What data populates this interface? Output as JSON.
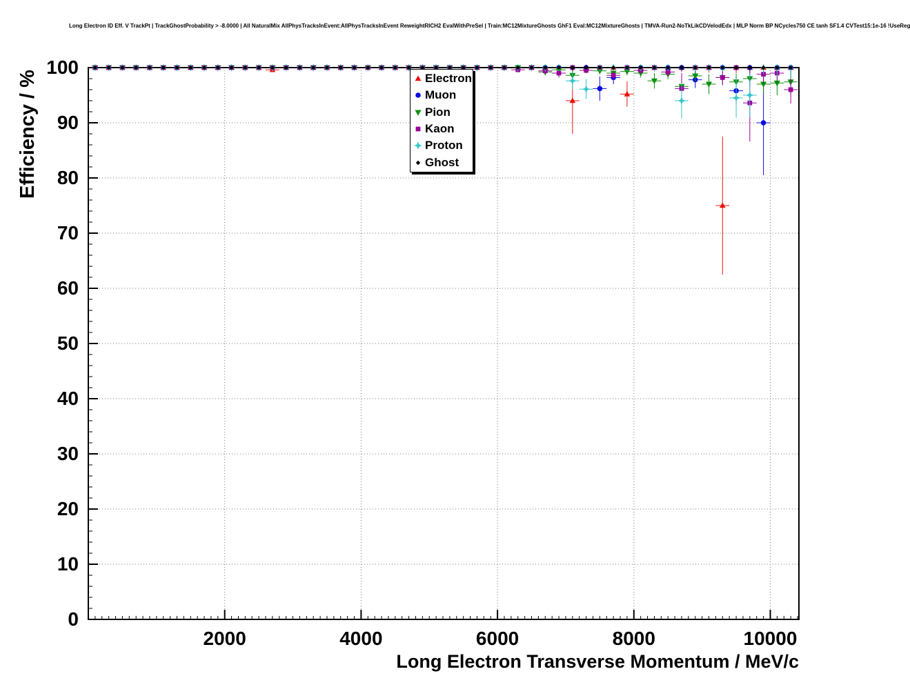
{
  "title": "Long Electron ID Eff. V TrackPt | TrackGhostProbability > -8.0000 | All NaturalMix AllPhysTracksInEvent:AllPhysTracksInEvent ReweightRICH2 EvalWithPreSel | Train:MC12MixtureGhosts GhF1 Eval:MC12MixtureGhosts | TMVA-Run2-NoTkLikCDVelodEdx | MLP Norm BP NCycles750 CE tanh SF1.4 CVTest15:1e-16 !UseReg",
  "chart_data": {
    "type": "scatter",
    "title": "Long Electron ID Eff. V TrackPt",
    "xlabel": "Long Electron Transverse Momentum / MeV/c",
    "ylabel": "Efficiency / %",
    "xlim": [
      0,
      10420
    ],
    "ylim": [
      0,
      100
    ],
    "x_ticks": [
      2000,
      4000,
      6000,
      8000,
      10000
    ],
    "y_ticks": [
      0,
      10,
      20,
      30,
      40,
      50,
      60,
      70,
      80,
      90,
      100
    ],
    "x_minor_step": 100,
    "y_minor_step": 2,
    "grid": "dotted",
    "legend_position": "top-center",
    "bin_half_width": 100,
    "x": [
      100,
      300,
      500,
      700,
      900,
      1100,
      1300,
      1500,
      1700,
      1900,
      2100,
      2300,
      2500,
      2700,
      2900,
      3100,
      3300,
      3500,
      3700,
      3900,
      4100,
      4300,
      4500,
      4700,
      4900,
      5100,
      5300,
      5500,
      5700,
      5900,
      6100,
      6300,
      6500,
      6700,
      6900,
      7100,
      7300,
      7500,
      7700,
      7900,
      8100,
      8300,
      8500,
      8700,
      8900,
      9100,
      9300,
      9500,
      9700,
      9900,
      10100,
      10300
    ],
    "series": [
      {
        "name": "Electron",
        "color": "#e8130c",
        "marker": "triangle-up",
        "marker_size": 4.6,
        "y": [
          100,
          100,
          100,
          100,
          100,
          100,
          100,
          100,
          100,
          100,
          100,
          100,
          100,
          99.6,
          100,
          100,
          100,
          100,
          100,
          100,
          100,
          100,
          100,
          100,
          100,
          100,
          100,
          100,
          100,
          100,
          100,
          100,
          100,
          100,
          100,
          94,
          100,
          100,
          100,
          95.2,
          100,
          100,
          100,
          100,
          100,
          100,
          75,
          100,
          100,
          100,
          100,
          100
        ],
        "ey": [
          0.05,
          0.05,
          0.05,
          0.05,
          0.05,
          0.05,
          0.05,
          0.05,
          0.05,
          0.05,
          0.05,
          0.05,
          0.05,
          0.35,
          0.05,
          0.05,
          0.05,
          0.05,
          0.05,
          0.05,
          0.05,
          0.05,
          0.05,
          0.05,
          0.05,
          0.05,
          0.05,
          0.05,
          0.05,
          0.05,
          0.05,
          0.05,
          0.05,
          0.3,
          0.3,
          6,
          0.5,
          0.5,
          0.5,
          2.3,
          0.7,
          0.7,
          0.8,
          0.8,
          0.9,
          0.9,
          12.5,
          1,
          1,
          1.2,
          1.4,
          1.8
        ]
      },
      {
        "name": "Muon",
        "color": "#0a0ae0",
        "marker": "circle",
        "marker_size": 4.2,
        "y": [
          100,
          100,
          100,
          100,
          100,
          100,
          100,
          100,
          100,
          100,
          100,
          100,
          100,
          100,
          100,
          100,
          100,
          100,
          100,
          100,
          100,
          100,
          100,
          100,
          100,
          100,
          100,
          100,
          100,
          100,
          100,
          100,
          100,
          100,
          100,
          100,
          100,
          96.2,
          98.2,
          100,
          100,
          100,
          100,
          100,
          97.8,
          100,
          100,
          95.8,
          100,
          90,
          100,
          100
        ],
        "ey": [
          0.05,
          0.05,
          0.05,
          0.05,
          0.05,
          0.05,
          0.05,
          0.05,
          0.05,
          0.05,
          0.05,
          0.05,
          0.05,
          0.05,
          0.05,
          0.05,
          0.05,
          0.05,
          0.05,
          0.05,
          0.05,
          0.05,
          0.05,
          0.05,
          0.05,
          0.05,
          0.05,
          0.05,
          0.05,
          0.05,
          0.05,
          0.05,
          0.05,
          0.3,
          0.3,
          0.3,
          0.3,
          2.2,
          1.2,
          0.4,
          0.4,
          0.4,
          0.4,
          0.4,
          1.5,
          0.5,
          0.5,
          2.6,
          0.6,
          9.5,
          1.0,
          1.4
        ]
      },
      {
        "name": "Pion",
        "color": "#0a8f0a",
        "marker": "triangle-down",
        "marker_size": 4.8,
        "y": [
          100,
          100,
          100,
          100,
          100,
          100,
          100,
          100,
          100,
          100,
          100,
          100,
          100,
          100,
          100,
          100,
          100,
          100,
          100,
          100,
          100,
          100,
          100,
          100,
          100,
          100,
          100,
          100,
          100,
          100,
          100,
          100,
          100,
          99.2,
          99.6,
          98.6,
          99.5,
          99.4,
          99,
          99.3,
          99,
          97.6,
          98.8,
          96.6,
          98.5,
          97,
          98.2,
          97.4,
          98,
          97,
          97.2,
          97.4
        ],
        "ey": [
          0.05,
          0.05,
          0.05,
          0.05,
          0.05,
          0.05,
          0.05,
          0.05,
          0.05,
          0.05,
          0.05,
          0.05,
          0.05,
          0.05,
          0.05,
          0.05,
          0.05,
          0.05,
          0.05,
          0.05,
          0.05,
          0.05,
          0.05,
          0.05,
          0.05,
          0.05,
          0.05,
          0.05,
          0.05,
          0.05,
          0.05,
          0.05,
          0.05,
          0.6,
          0.4,
          0.9,
          0.5,
          0.6,
          0.8,
          0.7,
          0.8,
          1.4,
          0.9,
          1.7,
          1,
          1.8,
          1.2,
          1.5,
          1.3,
          1.8,
          2.2,
          2.4
        ]
      },
      {
        "name": "Kaon",
        "color": "#990099",
        "marker": "square",
        "marker_size": 4.2,
        "y": [
          100,
          100,
          100,
          100,
          100,
          100,
          100,
          100,
          100,
          100,
          100,
          100,
          100,
          100,
          100,
          100,
          100,
          100,
          100,
          100,
          100,
          100,
          100,
          100,
          100,
          100,
          100,
          100,
          100,
          100,
          100,
          99.6,
          100,
          99.4,
          99,
          100,
          99.5,
          100,
          98.6,
          100,
          99.5,
          100,
          99.2,
          96.2,
          100,
          100,
          98.2,
          100,
          93.6,
          98.8,
          99,
          96
        ],
        "ey": [
          0.05,
          0.05,
          0.05,
          0.05,
          0.05,
          0.05,
          0.05,
          0.05,
          0.05,
          0.05,
          0.05,
          0.05,
          0.05,
          0.05,
          0.05,
          0.05,
          0.05,
          0.05,
          0.05,
          0.05,
          0.05,
          0.05,
          0.05,
          0.05,
          0.05,
          0.05,
          0.05,
          0.05,
          0.05,
          0.05,
          0.05,
          0.4,
          0.3,
          0.5,
          0.8,
          0.3,
          0.5,
          0.4,
          1.1,
          0.4,
          0.6,
          0.4,
          0.8,
          2.8,
          0.5,
          0.5,
          1.4,
          0.6,
          7,
          1.5,
          1.4,
          2.5
        ]
      },
      {
        "name": "Proton",
        "color": "#2fc6c9",
        "marker": "star4",
        "marker_size": 5,
        "y": [
          100,
          100,
          100,
          100,
          100,
          100,
          100,
          100,
          100,
          100,
          100,
          100,
          100,
          100,
          100,
          100,
          100,
          100,
          100,
          100,
          100,
          100,
          100,
          100,
          100,
          100,
          100,
          100,
          100,
          100,
          100,
          100,
          100,
          100,
          100,
          97.6,
          96.1,
          100,
          100,
          100,
          100,
          100,
          100,
          94,
          100,
          100,
          100,
          94.5,
          95,
          100,
          100,
          100
        ],
        "ey": [
          0.05,
          0.05,
          0.05,
          0.05,
          0.05,
          0.05,
          0.05,
          0.05,
          0.05,
          0.05,
          0.05,
          0.05,
          0.05,
          0.05,
          0.05,
          0.05,
          0.05,
          0.05,
          0.05,
          0.05,
          0.05,
          0.05,
          0.05,
          0.05,
          0.05,
          0.05,
          0.05,
          0.05,
          0.05,
          0.05,
          0.05,
          0.05,
          0.05,
          0.3,
          0.3,
          1.6,
          1.8,
          0.5,
          0.5,
          0.5,
          0.5,
          0.5,
          0.5,
          3.2,
          0.6,
          0.6,
          0.7,
          3.6,
          4,
          1.2,
          1.5,
          2
        ]
      },
      {
        "name": "Ghost",
        "color": "#000000",
        "marker": "diamond",
        "marker_size": 3.4,
        "y": [
          100,
          100,
          100,
          100,
          100,
          100,
          100,
          100,
          100,
          100,
          100,
          100,
          100,
          100,
          100,
          100,
          100,
          100,
          100,
          100,
          100,
          100,
          100,
          100,
          100,
          100,
          100,
          100,
          100,
          100,
          100,
          100,
          100,
          100,
          100,
          100,
          100,
          100,
          100,
          100,
          100,
          100,
          100,
          100,
          100,
          100,
          100,
          100,
          100,
          100,
          100,
          100
        ],
        "ey": [
          0.03,
          0.03,
          0.03,
          0.03,
          0.03,
          0.03,
          0.03,
          0.03,
          0.03,
          0.03,
          0.03,
          0.03,
          0.03,
          0.03,
          0.03,
          0.03,
          0.03,
          0.03,
          0.03,
          0.03,
          0.03,
          0.03,
          0.03,
          0.03,
          0.03,
          0.03,
          0.03,
          0.03,
          0.03,
          0.03,
          0.03,
          0.03,
          0.03,
          0.03,
          0.03,
          0.03,
          0.03,
          0.03,
          0.03,
          0.03,
          0.03,
          0.08,
          0.08,
          0.08,
          0.08,
          0.08,
          0.08,
          0.08,
          0.2,
          0.2,
          0.2,
          0.2
        ]
      }
    ]
  }
}
